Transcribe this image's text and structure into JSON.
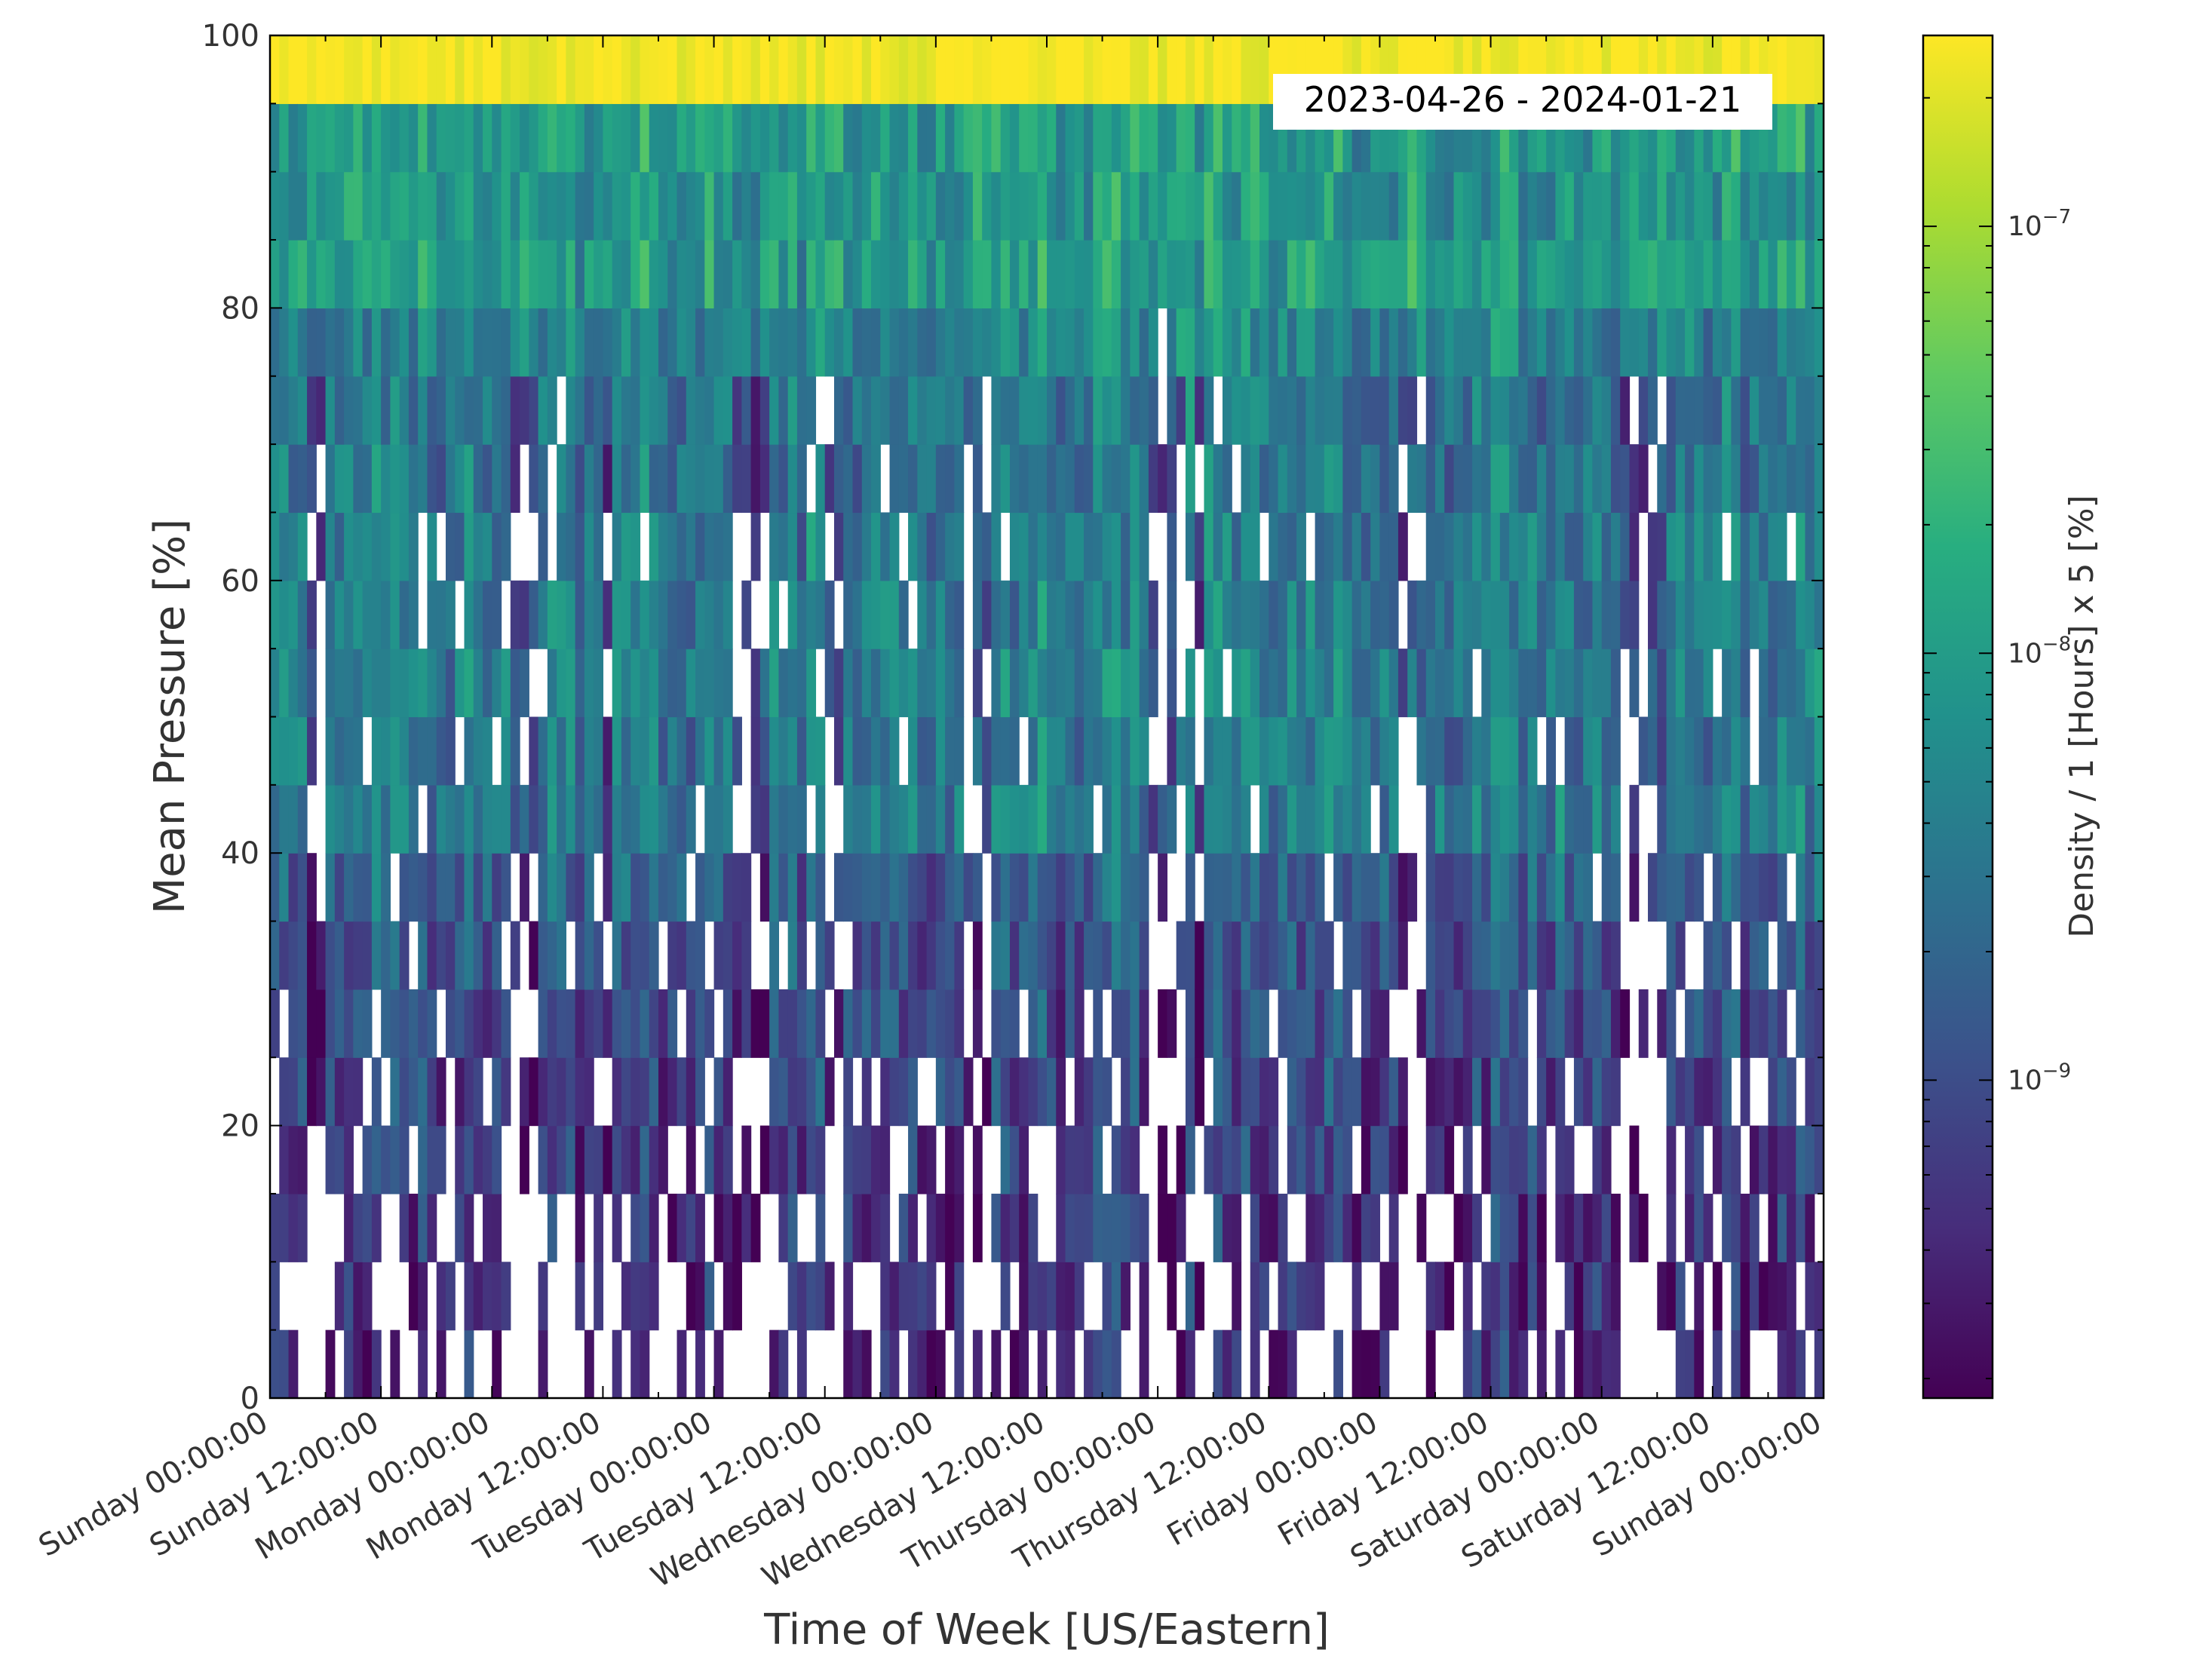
{
  "chart_data": {
    "type": "heatmap",
    "title": "",
    "annotation": "2023-04-26 - 2024-01-21",
    "xlabel": "Time of Week [US/Eastern]",
    "ylabel": "Mean Pressure [%]",
    "colorbar_label": "Density / 1 [Hours] x 5 [%]",
    "colormap": "viridis",
    "colorbar_scale": "log",
    "colorbar_range": [
      1.8e-10,
      2.8e-07
    ],
    "colorbar_ticks": [
      {
        "value": 1e-09,
        "base": "10",
        "exp": "−9"
      },
      {
        "value": 1e-08,
        "base": "10",
        "exp": "−8"
      },
      {
        "value": 1e-07,
        "base": "10",
        "exp": "−7"
      }
    ],
    "x_bin_hours": 1,
    "y_bin_percent": 5,
    "xlim_hours": [
      0,
      168
    ],
    "ylim": [
      0,
      100
    ],
    "x_ticks": [
      {
        "hour": 0,
        "label": "Sunday 00:00:00"
      },
      {
        "hour": 12,
        "label": "Sunday 12:00:00"
      },
      {
        "hour": 24,
        "label": "Monday 00:00:00"
      },
      {
        "hour": 36,
        "label": "Monday 12:00:00"
      },
      {
        "hour": 48,
        "label": "Tuesday 00:00:00"
      },
      {
        "hour": 60,
        "label": "Tuesday 12:00:00"
      },
      {
        "hour": 72,
        "label": "Wednesday 00:00:00"
      },
      {
        "hour": 84,
        "label": "Wednesday 12:00:00"
      },
      {
        "hour": 96,
        "label": "Thursday 00:00:00"
      },
      {
        "hour": 108,
        "label": "Thursday 12:00:00"
      },
      {
        "hour": 120,
        "label": "Friday 00:00:00"
      },
      {
        "hour": 132,
        "label": "Friday 12:00:00"
      },
      {
        "hour": 144,
        "label": "Saturday 00:00:00"
      },
      {
        "hour": 156,
        "label": "Saturday 12:00:00"
      },
      {
        "hour": 168,
        "label": "Sunday 00:00:00"
      }
    ],
    "y_ticks": [
      {
        "value": 0,
        "label": "0"
      },
      {
        "value": 20,
        "label": "20"
      },
      {
        "value": 40,
        "label": "40"
      },
      {
        "value": 60,
        "label": "60"
      },
      {
        "value": 80,
        "label": "80"
      },
      {
        "value": 100,
        "label": "100"
      }
    ],
    "density_profile_by_pressure_bin": {
      "bin_lower_edges": [
        0,
        5,
        10,
        15,
        20,
        25,
        30,
        35,
        40,
        45,
        50,
        55,
        60,
        65,
        70,
        75,
        80,
        85,
        90,
        95
      ],
      "typical_log10_density": [
        -9.35,
        -9.3,
        -9.2,
        -9.15,
        -9.05,
        -9.0,
        -8.9,
        -8.75,
        -8.4,
        -8.45,
        -8.35,
        -8.4,
        -8.4,
        -8.45,
        -8.45,
        -8.3,
        -8.0,
        -8.05,
        -8.0,
        -6.6
      ],
      "empty_probability": [
        0.3,
        0.26,
        0.22,
        0.18,
        0.15,
        0.11,
        0.09,
        0.07,
        0.04,
        0.04,
        0.03,
        0.03,
        0.03,
        0.03,
        0.03,
        0.02,
        0,
        0,
        0,
        0
      ]
    },
    "sparse_hours_of_week": [
      4,
      5,
      26,
      27,
      28,
      36,
      50,
      51,
      52,
      53,
      60,
      61,
      75,
      76,
      77,
      95,
      96,
      97,
      98,
      100,
      122,
      123,
      124,
      146,
      147,
      148,
      149,
      150
    ]
  }
}
